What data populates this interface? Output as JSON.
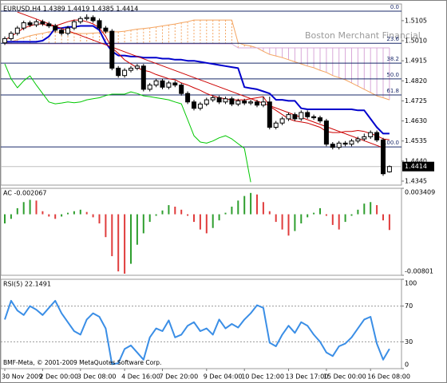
{
  "chart_data": [
    {
      "type": "candlestick",
      "title": "EURUSD,H4 1.4389 1.4419 1.4385 1.4414",
      "watermark": "Boston Merchant Financial",
      "ylim": [
        1.4326,
        1.5184
      ],
      "yticks": [
        1.5105,
        {
          "value": 1.501,
          "label": "1.5010"
        },
        1.4915,
        {
          "value": 1.482,
          "label": "1.4820"
        },
        1.4725,
        {
          "value": 1.463,
          "label": "1.4630"
        },
        1.4535,
        {
          "value": 1.444,
          "label": "1.4440"
        },
        1.4345
      ],
      "up_color": "#ffffff",
      "down_color": "#000000",
      "open": [
        1.5,
        1.502,
        1.5045,
        1.507,
        1.5095,
        1.5085,
        1.51,
        1.509,
        1.508,
        1.506,
        1.5045,
        1.507,
        1.51,
        1.5115,
        1.512,
        1.5105,
        1.507,
        1.5055,
        1.488,
        1.4845,
        1.487,
        1.488,
        1.489,
        1.478,
        1.48,
        1.482,
        1.479,
        1.481,
        1.48,
        1.476,
        1.472,
        1.469,
        1.471,
        1.473,
        1.474,
        1.472,
        1.4735,
        1.471,
        1.4725,
        1.4715,
        1.472,
        1.4705,
        1.472,
        1.46,
        1.462,
        1.464,
        1.466,
        1.464,
        1.467,
        1.465,
        1.4645,
        1.463,
        1.452,
        1.4505,
        1.4525,
        1.452,
        1.4535,
        1.4545,
        1.4555,
        1.4575,
        1.454,
        1.4389
      ],
      "high": [
        1.503,
        1.5055,
        1.508,
        1.5105,
        1.5105,
        1.511,
        1.511,
        1.51,
        1.509,
        1.507,
        1.508,
        1.511,
        1.5125,
        1.5135,
        1.513,
        1.5115,
        1.508,
        1.5065,
        1.489,
        1.488,
        1.489,
        1.49,
        1.49,
        1.481,
        1.483,
        1.483,
        1.482,
        1.482,
        1.481,
        1.477,
        1.473,
        1.472,
        1.474,
        1.475,
        1.475,
        1.4745,
        1.4745,
        1.4735,
        1.4735,
        1.473,
        1.473,
        1.4745,
        1.4745,
        1.463,
        1.465,
        1.467,
        1.467,
        1.468,
        1.468,
        1.466,
        1.4655,
        1.464,
        1.453,
        1.4535,
        1.4535,
        1.4545,
        1.4555,
        1.457,
        1.4585,
        1.4585,
        1.455,
        1.4419
      ],
      "low": [
        1.499,
        1.501,
        1.5035,
        1.506,
        1.5075,
        1.5075,
        1.508,
        1.507,
        1.505,
        1.5035,
        1.5035,
        1.506,
        1.509,
        1.5105,
        1.5095,
        1.506,
        1.5045,
        1.487,
        1.4835,
        1.4835,
        1.486,
        1.487,
        1.477,
        1.477,
        1.479,
        1.478,
        1.478,
        1.479,
        1.475,
        1.471,
        1.468,
        1.468,
        1.47,
        1.472,
        1.471,
        1.471,
        1.47,
        1.47,
        1.4705,
        1.4705,
        1.4695,
        1.4695,
        1.459,
        1.459,
        1.461,
        1.463,
        1.463,
        1.463,
        1.464,
        1.4635,
        1.462,
        1.451,
        1.4495,
        1.4495,
        1.451,
        1.451,
        1.4525,
        1.4535,
        1.4545,
        1.453,
        1.437,
        1.4385
      ],
      "close": [
        1.502,
        1.5045,
        1.507,
        1.5095,
        1.5085,
        1.51,
        1.509,
        1.508,
        1.506,
        1.5045,
        1.507,
        1.51,
        1.5115,
        1.512,
        1.5105,
        1.507,
        1.5055,
        1.488,
        1.4845,
        1.487,
        1.488,
        1.489,
        1.478,
        1.48,
        1.482,
        1.479,
        1.481,
        1.48,
        1.476,
        1.472,
        1.469,
        1.471,
        1.473,
        1.474,
        1.472,
        1.4735,
        1.471,
        1.4725,
        1.4715,
        1.472,
        1.4705,
        1.472,
        1.46,
        1.462,
        1.464,
        1.466,
        1.464,
        1.467,
        1.465,
        1.4645,
        1.463,
        1.452,
        1.4505,
        1.4525,
        1.452,
        1.4535,
        1.4545,
        1.4555,
        1.4575,
        1.454,
        1.438,
        1.4414
      ],
      "cloud": {
        "up_color": "#f4a460",
        "down_color": "#d8a8d8",
        "span_a": [
          1.4995,
          1.5005,
          1.5015,
          1.5025,
          1.5033,
          1.504,
          1.5045,
          1.5052,
          1.5052,
          1.505,
          1.5048,
          1.5046,
          1.5044,
          1.5044,
          1.5046,
          1.5048,
          1.505,
          1.5052,
          1.5052,
          1.5055,
          1.506,
          1.5065,
          1.5068,
          1.5071,
          1.5075,
          1.508,
          1.5085,
          1.5089,
          1.5095,
          1.51,
          1.5108,
          1.5108,
          1.5108,
          1.5108,
          1.5108,
          1.5108,
          1.5108,
          1.5,
          1.499,
          1.4985,
          1.4976,
          1.496,
          1.4945,
          1.4938,
          1.493,
          1.492,
          1.491,
          1.49,
          1.489,
          1.4882,
          1.487,
          1.486,
          1.4845,
          1.4835,
          1.4825,
          1.481,
          1.4795,
          1.478,
          1.4765,
          1.4749,
          1.474,
          1.473
        ],
        "span_b": [
          1.4995,
          1.4995,
          1.4995,
          1.4995,
          1.4995,
          1.4995,
          1.4995,
          1.4995,
          1.4995,
          1.4995,
          1.4995,
          1.4995,
          1.4995,
          1.4995,
          1.4995,
          1.4995,
          1.4995,
          1.4995,
          1.4995,
          1.4995,
          1.4995,
          1.4995,
          1.4995,
          1.4995,
          1.4995,
          1.4995,
          1.4995,
          1.4995,
          1.4995,
          1.4995,
          1.4995,
          1.4995,
          1.4995,
          1.4995,
          1.4995,
          1.4995,
          1.4995,
          1.4976,
          1.4976,
          1.4976,
          1.4976,
          1.4976,
          1.4976,
          1.4976,
          1.4976,
          1.4976,
          1.4976,
          1.4976,
          1.4976,
          1.4976,
          1.4976,
          1.4976,
          1.4976,
          1.4976,
          1.4976,
          1.4976,
          1.4976,
          1.4976,
          1.4976,
          1.4976,
          1.4976,
          1.4976
        ]
      },
      "series": [
        {
          "color": "#0000cc",
          "width": 2,
          "values": [
            1.5005,
            1.5005,
            1.5005,
            1.5005,
            1.5005,
            1.5005,
            1.501,
            1.503,
            1.507,
            1.507,
            1.5075,
            1.5075,
            1.508,
            1.508,
            1.508,
            1.506,
            1.5,
            1.496,
            1.494,
            1.494,
            1.4935,
            1.4935,
            1.493,
            1.493,
            1.493,
            1.4925,
            1.4925,
            1.492,
            1.492,
            1.4915,
            1.4915,
            1.491,
            1.4905,
            1.49,
            1.4895,
            1.489,
            1.4885,
            1.488,
            1.479,
            1.4785,
            1.478,
            1.477,
            1.476,
            1.473,
            1.473,
            1.4725,
            1.4725,
            1.469,
            1.4685,
            1.4685,
            1.4685,
            1.4685,
            1.4685,
            1.4685,
            1.4685,
            1.4685,
            1.468,
            1.468,
            1.464,
            1.46,
            1.457,
            1.457
          ]
        },
        {
          "color": "#cc0000",
          "width": 1,
          "values": [
            1.5014,
            1.503,
            1.505,
            1.507,
            1.508,
            1.5089,
            1.5089,
            1.508,
            1.508,
            1.509,
            1.51,
            1.5108,
            1.5108,
            1.51,
            1.509,
            1.5071,
            1.503,
            1.4976,
            1.495,
            1.4919,
            1.49,
            1.4882,
            1.487,
            1.4863,
            1.485,
            1.484,
            1.483,
            1.4825,
            1.481,
            1.48,
            1.4787,
            1.4775,
            1.476,
            1.4749,
            1.474,
            1.4735,
            1.473,
            1.473,
            1.473,
            1.4735,
            1.474,
            1.4745,
            1.47,
            1.468,
            1.466,
            1.464,
            1.463,
            1.4625,
            1.462,
            1.461,
            1.46,
            1.458,
            1.4575,
            1.4575,
            1.458,
            1.458,
            1.4585,
            1.458,
            1.457,
            1.456,
            1.4545,
            1.4541
          ]
        },
        {
          "color": "#00c800",
          "width": 1,
          "values": [
            1.49,
            1.483,
            1.4787,
            1.482,
            1.4844,
            1.48,
            1.476,
            1.472,
            1.4711,
            1.4715,
            1.472,
            1.4716,
            1.472,
            1.473,
            1.4735,
            1.474,
            1.475,
            1.4757,
            1.4757,
            1.4757,
            1.4768,
            1.476,
            1.4749,
            1.4745,
            1.474,
            1.4735,
            1.473,
            1.472,
            1.4711,
            1.4636,
            1.456,
            1.453,
            1.4525,
            1.4535,
            1.455,
            1.456,
            1.4545,
            1.4522,
            1.45,
            1.434,
            null,
            null,
            null,
            null,
            null,
            null,
            null,
            null,
            null,
            null,
            null,
            null,
            null,
            null,
            null,
            null,
            null,
            null,
            null,
            null,
            null,
            null
          ]
        }
      ],
      "trend_line": {
        "x": [
          2,
          60
        ],
        "y": [
          1.5146,
          1.4503
        ],
        "color": "#cc0000"
      },
      "fib_color": "#1a2a6a",
      "fib_levels": [
        {
          "label": "0.0",
          "price": 1.515
        },
        {
          "label": "23.6",
          "price": 1.4998
        },
        {
          "label": "38.2",
          "price": 1.4904
        },
        {
          "label": "50.0",
          "price": 1.4829
        },
        {
          "label": "61.8",
          "price": 1.4753
        },
        {
          "label": "100.0",
          "price": 1.4507
        }
      ],
      "last_price": 1.4414
    },
    {
      "type": "bar",
      "title": "AC -0.002067",
      "ylim": [
        -0.00801,
        0.003409
      ],
      "yticks": [
        0.003409,
        -0.00801
      ],
      "up_color": "#2e9e2e",
      "down_color": "#e03c3c",
      "values": [
        -0.0012,
        -0.0006,
        0.0008,
        0.0016,
        0.0019,
        0.0018,
        0.0004,
        -0.0003,
        -0.0006,
        -0.0003,
        0.0002,
        0.0004,
        0.0006,
        0.0003,
        -0.0004,
        -0.0012,
        -0.003,
        -0.0055,
        -0.0075,
        -0.0078,
        -0.0065,
        -0.004,
        -0.0025,
        -0.001,
        -0.0002,
        0.0005,
        0.0012,
        0.001,
        0.0006,
        -0.0002,
        -0.001,
        -0.002,
        -0.0025,
        -0.0018,
        -0.0008,
        0.0002,
        0.001,
        0.0018,
        0.0024,
        0.0028,
        0.0026,
        0.0016,
        0.0004,
        -0.001,
        -0.002,
        -0.0028,
        -0.0022,
        -0.0012,
        -0.0004,
        0.0002,
        0.0008,
        -0.0002,
        -0.0014,
        -0.002,
        -0.001,
        -0.0002,
        0.0006,
        0.0014,
        0.0016,
        0.0012,
        -0.0008,
        -0.002067
      ]
    },
    {
      "type": "line",
      "title": "RSI(5) 22.1491",
      "copyright": "BMF-Meta, © 2001-2009 MetaQuotes Software Corp.",
      "ylim": [
        0,
        100
      ],
      "yticks": [
        100,
        70,
        30,
        0
      ],
      "grid": true,
      "color": "#3a8ee6",
      "values": [
        55,
        76,
        65,
        60,
        70,
        66,
        60,
        68,
        76,
        62,
        52,
        42,
        38,
        55,
        62,
        58,
        45,
        5,
        6,
        22,
        26,
        18,
        10,
        35,
        45,
        42,
        54,
        35,
        38,
        48,
        52,
        42,
        45,
        38,
        55,
        45,
        50,
        46,
        55,
        62,
        71,
        68,
        29,
        25,
        38,
        48,
        40,
        52,
        48,
        38,
        30,
        18,
        14,
        25,
        28,
        35,
        45,
        55,
        58,
        28,
        10,
        22.1491
      ],
      "categories": [
        "30 Nov 2009",
        null,
        null,
        null,
        null,
        null,
        "2 Dec 00:00",
        null,
        null,
        null,
        null,
        null,
        "3 Dec 08:00",
        null,
        null,
        null,
        null,
        null,
        null,
        "4 Dec 16:00",
        null,
        null,
        null,
        null,
        null,
        "7 Dec 20:00",
        null,
        null,
        null,
        null,
        null,
        null,
        "9 Dec 04:00",
        null,
        null,
        null,
        null,
        null,
        "10 Dec 12:00",
        null,
        null,
        null,
        null,
        null,
        null,
        "13 Dec 17:00",
        null,
        null,
        null,
        null,
        null,
        "15 Dec 00:00",
        null,
        null,
        null,
        null,
        null,
        null,
        "16 Dec 08:00",
        null,
        null,
        null
      ]
    }
  ]
}
